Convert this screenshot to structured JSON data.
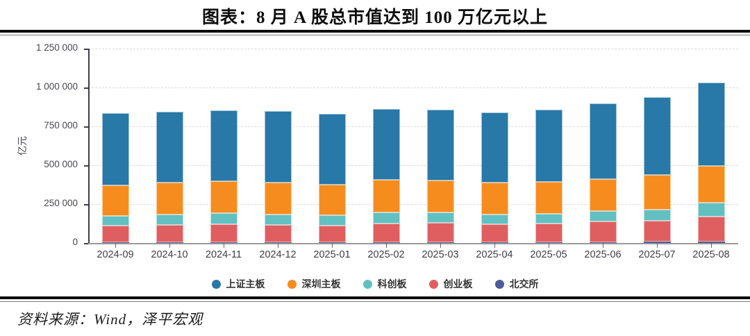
{
  "title": "图表：8 月 A 股总市值达到 100 万亿元以上",
  "source_note": "资料来源：Wind，泽平宏观",
  "chart_data": {
    "type": "bar",
    "stacked": true,
    "title": "图表：8 月 A 股总市值达到 100 万亿元以上",
    "xlabel": "",
    "ylabel": "亿元",
    "ylim": [
      0,
      1250000
    ],
    "grid": "horizontal-dashed",
    "legend_position": "bottom",
    "categories": [
      "2024-09",
      "2024-10",
      "2024-11",
      "2024-12",
      "2025-01",
      "2025-02",
      "2025-03",
      "2025-04",
      "2025-05",
      "2025-06",
      "2025-07",
      "2025-08"
    ],
    "series": [
      {
        "name": "上证主板",
        "color": "#2878a8",
        "values": [
          464000,
          456000,
          456000,
          460000,
          455000,
          456000,
          455000,
          451000,
          464000,
          486000,
          501000,
          536000
        ]
      },
      {
        "name": "深圳主板",
        "color": "#f78c1e",
        "values": [
          197000,
          205000,
          205000,
          205000,
          196000,
          210000,
          206000,
          205000,
          206000,
          206000,
          223000,
          236000
        ]
      },
      {
        "name": "科创板",
        "color": "#62c0c1",
        "values": [
          62000,
          67000,
          72000,
          67000,
          67000,
          71000,
          67000,
          63000,
          62000,
          67000,
          71000,
          89000
        ]
      },
      {
        "name": "创业板",
        "color": "#df5f61",
        "values": [
          108000,
          112000,
          116000,
          112000,
          107000,
          120000,
          124000,
          115000,
          119000,
          132000,
          136000,
          162000
        ]
      },
      {
        "name": "北交所",
        "color": "#4d5c9a",
        "values": [
          4000,
          4000,
          4000,
          4000,
          5000,
          5000,
          5000,
          5000,
          6000,
          6000,
          7000,
          8000
        ]
      }
    ],
    "stack_order_bottom_to_top": [
      "北交所",
      "创业板",
      "科创板",
      "深圳主板",
      "上证主板"
    ],
    "totals": [
      835000,
      844000,
      853000,
      848000,
      830000,
      862000,
      857000,
      839000,
      857000,
      897000,
      938000,
      1031000
    ],
    "yticks": {
      "values": [
        0,
        250000,
        500000,
        750000,
        1000000,
        1250000
      ],
      "labels": [
        "0",
        "250 000",
        "500 000",
        "750 000",
        "1 000 000",
        "1 250 000"
      ]
    },
    "axis_colors": {
      "y_axis": "#3d3d46",
      "x_axis": "#9a9a9a",
      "gridline": "#d9d9d9",
      "tick_label": "#47474f"
    }
  }
}
